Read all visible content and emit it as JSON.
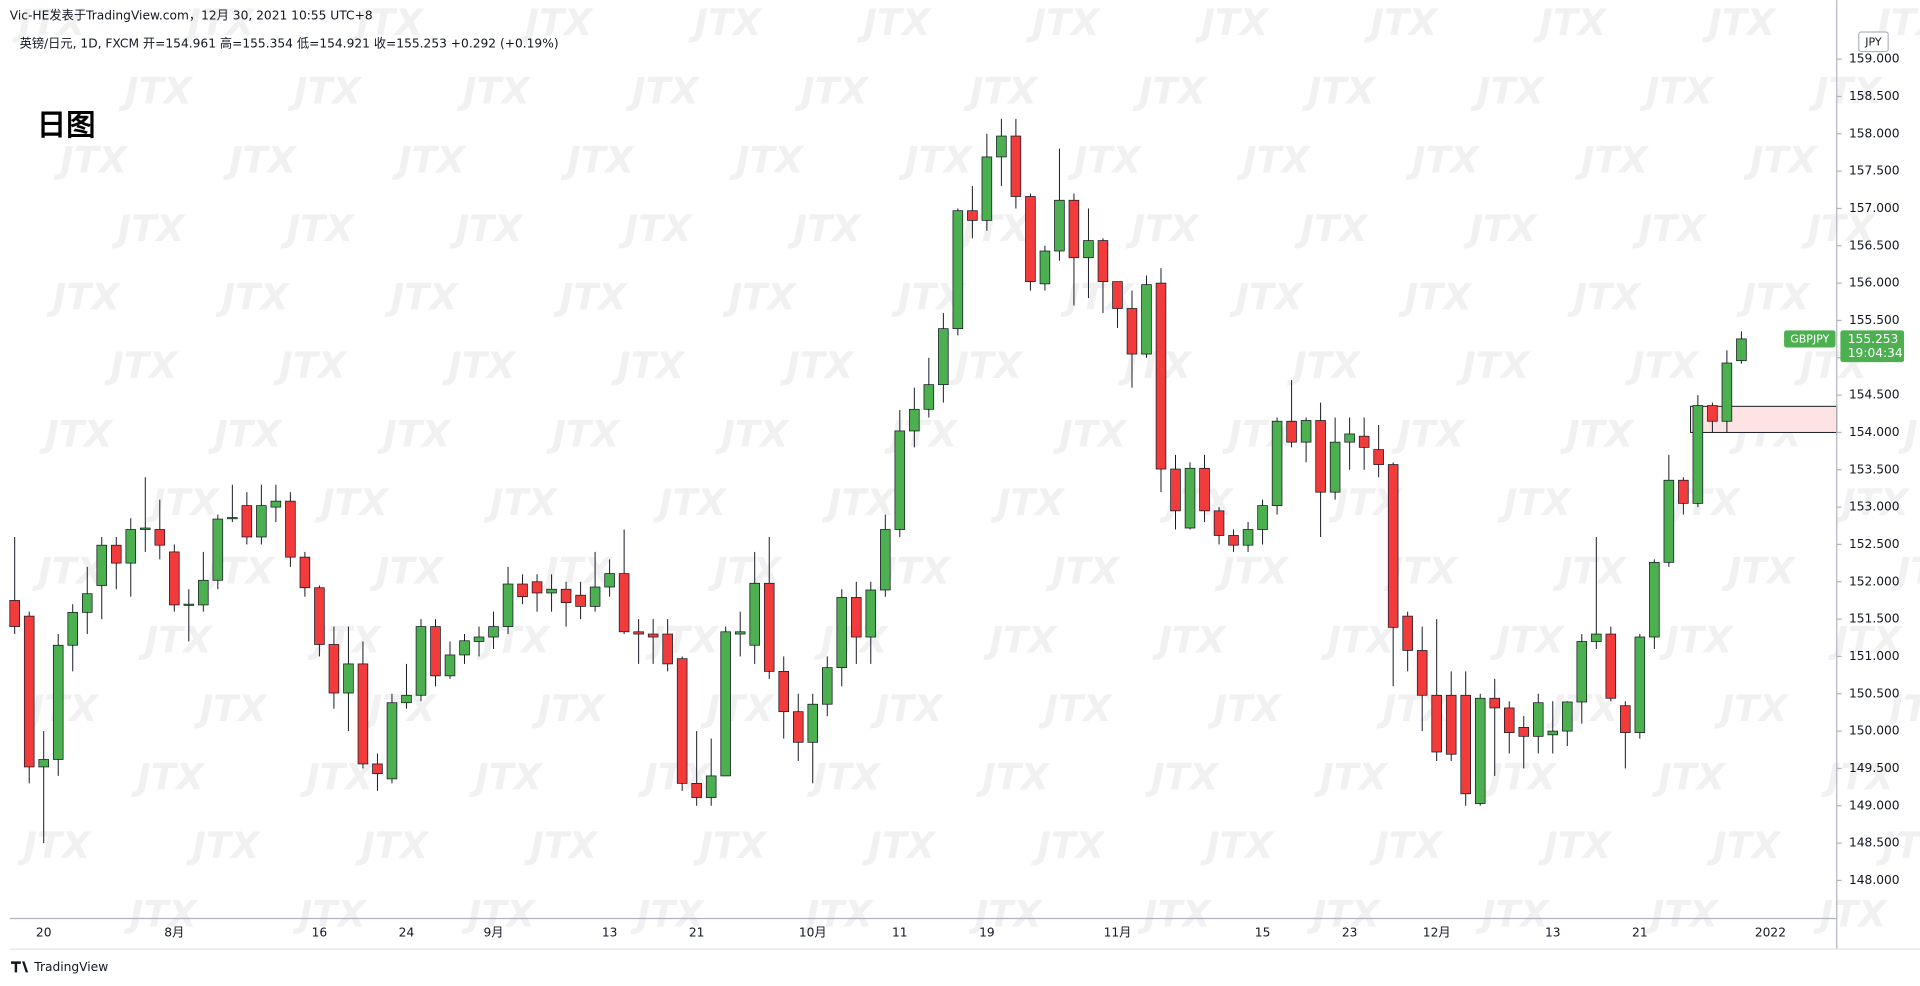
{
  "chart_data": {
    "type": "candlestick",
    "credit": "Vic-HE发表于TradingView.com，12月 30, 2021 10:55 UTC+8",
    "header": "英镑/日元, 1D, FXCM  开=154.961  高=155.354  低=154.921  收=155.253  +0.292 (+0.19%)",
    "annotation": "日图",
    "currency": "JPY",
    "watermark": "JTX",
    "brand": "TradingView",
    "last_price": {
      "symbol": "GBPJPY",
      "price": 155.253,
      "countdown": "19:04:34"
    },
    "zone": {
      "low": 154.0,
      "high": 154.35,
      "color": "#fde3e3"
    },
    "up_color": "#4caf50",
    "down_color": "#f23c3c",
    "grid": false,
    "categories": [
      null,
      null,
      "20",
      null,
      null,
      null,
      null,
      null,
      null,
      null,
      null,
      "8月",
      null,
      null,
      null,
      null,
      null,
      null,
      null,
      null,
      null,
      "16",
      null,
      null,
      null,
      null,
      null,
      "24",
      null,
      null,
      null,
      null,
      null,
      "9月",
      null,
      null,
      null,
      null,
      null,
      null,
      null,
      "13",
      null,
      null,
      null,
      null,
      null,
      "21",
      null,
      null,
      null,
      null,
      null,
      null,
      null,
      "10月",
      null,
      null,
      null,
      null,
      null,
      "11",
      null,
      null,
      null,
      null,
      null,
      "19",
      null,
      null,
      null,
      null,
      null,
      null,
      null,
      null,
      "11月",
      null,
      null,
      null,
      null,
      null,
      null,
      null,
      null,
      null,
      "15",
      null,
      null,
      null,
      null,
      null,
      "23",
      null,
      null,
      null,
      null,
      null,
      "12月",
      null,
      null,
      null,
      null,
      null,
      null,
      null,
      "13",
      null,
      null,
      null,
      null,
      null,
      "21",
      null,
      null,
      null,
      null,
      null,
      null,
      null,
      null,
      "2022"
    ],
    "open": [
      151.75,
      151.54,
      149.52,
      149.62,
      151.15,
      151.59,
      151.95,
      152.49,
      152.25,
      152.7,
      152.7,
      152.4,
      151.69,
      151.69,
      152.02,
      152.85,
      153.02,
      152.6,
      153.0,
      153.08,
      152.33,
      151.92,
      151.16,
      150.51,
      150.9,
      149.56,
      149.36,
      150.38,
      150.48,
      151.4,
      150.74,
      151.02,
      151.2,
      151.26,
      151.4,
      151.97,
      152.0,
      151.85,
      151.9,
      151.82,
      151.67,
      151.93,
      152.11,
      151.33,
      151.3,
      151.3,
      150.97,
      149.3,
      149.11,
      149.4,
      151.3,
      151.15,
      151.98,
      150.8,
      150.26,
      149.85,
      150.36,
      150.85,
      151.79,
      151.26,
      151.89,
      152.7,
      154.02,
      154.31,
      154.64,
      155.39,
      156.97,
      156.84,
      157.69,
      157.97,
      157.16,
      155.99,
      156.43,
      157.11,
      156.34,
      156.57,
      156.02,
      155.66,
      155.05,
      156.0,
      153.51,
      152.72,
      153.52,
      152.95,
      152.62,
      152.49,
      152.7,
      153.02,
      154.15,
      153.87,
      154.16,
      153.2,
      153.87,
      153.95,
      153.77,
      153.57,
      151.54,
      151.08,
      150.48,
      150.48,
      150.48,
      149.03,
      150.44,
      150.31,
      150.05,
      149.93,
      149.95,
      150.0,
      150.39,
      151.2,
      151.3,
      150.34,
      149.98,
      151.26,
      152.26,
      153.36,
      153.05,
      154.36,
      154.15,
      154.961,
      null,
      null
    ],
    "high": [
      152.6,
      151.6,
      150.0,
      151.3,
      151.7,
      152.2,
      152.6,
      152.6,
      152.85,
      153.4,
      153.1,
      152.5,
      151.9,
      152.4,
      152.9,
      153.3,
      153.2,
      153.3,
      153.3,
      153.2,
      152.4,
      151.95,
      151.4,
      151.4,
      151.2,
      149.7,
      150.5,
      150.9,
      151.5,
      151.5,
      151.2,
      151.3,
      151.4,
      151.6,
      152.2,
      152.1,
      152.1,
      152.1,
      152.0,
      152.0,
      152.4,
      152.3,
      152.7,
      151.5,
      151.5,
      151.5,
      151.0,
      150.0,
      149.9,
      151.4,
      151.6,
      152.4,
      152.6,
      151.0,
      150.5,
      150.5,
      151.0,
      151.9,
      152.0,
      152.0,
      152.9,
      154.3,
      154.6,
      155.0,
      155.6,
      157.0,
      157.3,
      158.0,
      158.2,
      158.2,
      157.2,
      156.5,
      157.8,
      157.2,
      157.0,
      156.6,
      156.0,
      155.9,
      156.1,
      156.2,
      153.7,
      153.6,
      153.7,
      153.0,
      152.7,
      152.8,
      153.1,
      154.2,
      154.7,
      154.2,
      154.4,
      154.2,
      154.2,
      154.2,
      154.1,
      153.6,
      151.6,
      151.4,
      151.5,
      150.8,
      150.8,
      150.5,
      150.7,
      150.4,
      150.2,
      150.5,
      150.4,
      150.4,
      151.3,
      152.6,
      151.4,
      150.4,
      151.3,
      152.3,
      153.7,
      153.4,
      154.5,
      154.4,
      155.1,
      155.354,
      null,
      null
    ],
    "low": [
      151.3,
      149.3,
      148.5,
      149.4,
      150.8,
      151.3,
      151.5,
      151.9,
      151.8,
      152.4,
      152.3,
      151.6,
      151.2,
      151.6,
      151.9,
      152.8,
      152.5,
      152.5,
      152.8,
      152.2,
      151.8,
      151.0,
      150.3,
      150.0,
      149.5,
      149.2,
      149.3,
      150.3,
      150.4,
      150.6,
      150.7,
      150.9,
      151.0,
      151.1,
      151.3,
      151.7,
      151.6,
      151.6,
      151.4,
      151.5,
      151.6,
      151.8,
      151.3,
      150.9,
      150.9,
      150.8,
      149.2,
      149.0,
      149.0,
      149.4,
      151.0,
      150.9,
      150.7,
      149.9,
      149.6,
      149.3,
      150.2,
      150.6,
      150.9,
      150.9,
      151.8,
      152.6,
      153.8,
      154.2,
      154.4,
      155.3,
      156.6,
      156.7,
      157.3,
      157.0,
      155.9,
      155.9,
      156.3,
      155.7,
      155.8,
      155.6,
      155.4,
      154.6,
      155.0,
      153.2,
      152.7,
      152.7,
      152.8,
      152.5,
      152.4,
      152.4,
      152.5,
      152.9,
      153.8,
      153.6,
      152.6,
      153.1,
      153.5,
      153.5,
      153.4,
      150.6,
      150.8,
      150.0,
      149.6,
      149.6,
      149.0,
      149.0,
      149.4,
      149.7,
      149.5,
      149.7,
      149.7,
      149.8,
      150.1,
      151.1,
      150.4,
      149.5,
      149.9,
      151.1,
      152.2,
      152.9,
      153.0,
      154.0,
      154.0,
      154.921,
      null,
      null
    ],
    "close": [
      151.4,
      149.52,
      149.62,
      151.15,
      151.59,
      151.84,
      152.49,
      152.25,
      152.7,
      152.72,
      152.49,
      151.69,
      151.7,
      152.02,
      152.84,
      152.86,
      152.6,
      153.02,
      153.08,
      152.33,
      151.92,
      151.16,
      150.51,
      150.9,
      149.56,
      149.43,
      150.38,
      150.48,
      151.4,
      150.74,
      151.02,
      151.21,
      151.26,
      151.4,
      151.97,
      151.8,
      151.85,
      151.9,
      151.72,
      151.67,
      151.93,
      152.11,
      151.33,
      151.3,
      151.26,
      150.9,
      149.3,
      149.11,
      149.4,
      151.33,
      151.33,
      151.98,
      150.8,
      150.26,
      149.85,
      150.36,
      150.85,
      151.79,
      151.26,
      151.89,
      152.7,
      154.02,
      154.31,
      154.64,
      155.39,
      156.97,
      156.84,
      157.69,
      157.97,
      157.16,
      156.02,
      156.43,
      157.11,
      156.34,
      156.57,
      156.02,
      155.66,
      155.05,
      155.98,
      153.51,
      152.95,
      153.52,
      152.95,
      152.62,
      152.49,
      152.7,
      153.02,
      154.15,
      153.87,
      154.16,
      153.2,
      153.87,
      153.98,
      153.8,
      153.57,
      151.39,
      151.08,
      150.48,
      149.72,
      149.69,
      149.16,
      150.44,
      150.31,
      149.98,
      149.93,
      150.38,
      150.0,
      150.39,
      151.2,
      151.3,
      150.44,
      149.98,
      151.26,
      152.26,
      153.36,
      153.05,
      154.36,
      154.15,
      154.93,
      155.253,
      null,
      null
    ],
    "ylim": [
      147.49,
      159.79
    ],
    "yticks": [
      {
        "value": 148,
        "label": "148.000"
      },
      {
        "value": 148.5,
        "label": "148.500"
      },
      {
        "value": 149,
        "label": "149.000"
      },
      {
        "value": 149.5,
        "label": "149.500"
      },
      {
        "value": 150,
        "label": "150.000"
      },
      {
        "value": 150.5,
        "label": "150.500"
      },
      {
        "value": 151,
        "label": "151.000"
      },
      {
        "value": 151.5,
        "label": "151.500"
      },
      {
        "value": 152,
        "label": "152.000"
      },
      {
        "value": 152.5,
        "label": "152.500"
      },
      {
        "value": 153,
        "label": "153.000"
      },
      {
        "value": 153.5,
        "label": "153.500"
      },
      {
        "value": 154,
        "label": "154.000"
      },
      {
        "value": 154.5,
        "label": "154.500"
      },
      {
        "value": 155,
        "label": "155.000"
      },
      {
        "value": 155.5,
        "label": "155.500"
      },
      {
        "value": 156,
        "label": "156.000"
      },
      {
        "value": 156.5,
        "label": "156.500"
      },
      {
        "value": 157,
        "label": "157.000"
      },
      {
        "value": 157.5,
        "label": "157.500"
      },
      {
        "value": 158,
        "label": "158.000"
      },
      {
        "value": 158.5,
        "label": "158.500"
      },
      {
        "value": 159,
        "label": "159.000"
      }
    ]
  }
}
